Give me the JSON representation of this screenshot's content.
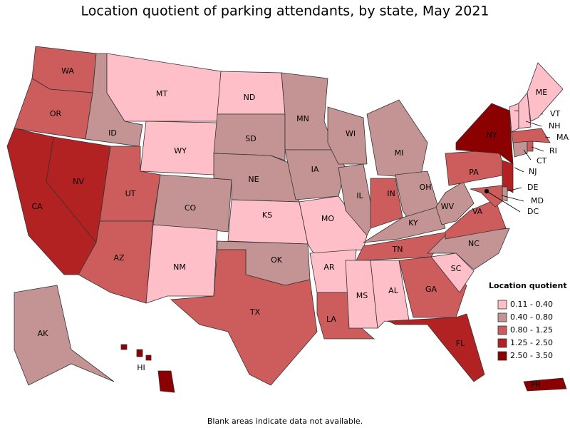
{
  "title": "Location quotient of parking attendants, by state, May 2021",
  "footnote": "Blank areas indicate data not available.",
  "legend": {
    "title": "Location quotient",
    "items": [
      {
        "label": "0.11 - 0.40",
        "color": "#ffbfc9"
      },
      {
        "label": "0.40 - 0.80",
        "color": "#c49494"
      },
      {
        "label": "0.80 - 1.25",
        "color": "#cd5c5c"
      },
      {
        "label": "1.25 - 2.50",
        "color": "#b22222"
      },
      {
        "label": "2.50 - 3.50",
        "color": "#8b0000"
      }
    ]
  },
  "states": [
    {
      "label": "WA",
      "range": "0.80 - 1.25"
    },
    {
      "label": "OR",
      "range": "0.80 - 1.25"
    },
    {
      "label": "CA",
      "range": "1.25 - 2.50"
    },
    {
      "label": "NV",
      "range": "1.25 - 2.50"
    },
    {
      "label": "ID",
      "range": "0.40 - 0.80"
    },
    {
      "label": "MT",
      "range": "0.11 - 0.40"
    },
    {
      "label": "WY",
      "range": "0.11 - 0.40"
    },
    {
      "label": "UT",
      "range": "0.80 - 1.25"
    },
    {
      "label": "AZ",
      "range": "0.80 - 1.25"
    },
    {
      "label": "CO",
      "range": "0.40 - 0.80"
    },
    {
      "label": "NM",
      "range": "0.11 - 0.40"
    },
    {
      "label": "ND",
      "range": "0.11 - 0.40"
    },
    {
      "label": "SD",
      "range": "0.40 - 0.80"
    },
    {
      "label": "NE",
      "range": "0.40 - 0.80"
    },
    {
      "label": "KS",
      "range": "0.11 - 0.40"
    },
    {
      "label": "OK",
      "range": "0.40 - 0.80"
    },
    {
      "label": "TX",
      "range": "0.80 - 1.25"
    },
    {
      "label": "MN",
      "range": "0.40 - 0.80"
    },
    {
      "label": "IA",
      "range": "0.40 - 0.80"
    },
    {
      "label": "MO",
      "range": "0.11 - 0.40"
    },
    {
      "label": "AR",
      "range": "0.11 - 0.40"
    },
    {
      "label": "LA",
      "range": "0.80 - 1.25"
    },
    {
      "label": "WI",
      "range": "0.40 - 0.80"
    },
    {
      "label": "IL",
      "range": "0.40 - 0.80"
    },
    {
      "label": "MI",
      "range": "0.40 - 0.80"
    },
    {
      "label": "IN",
      "range": "0.80 - 1.25"
    },
    {
      "label": "OH",
      "range": "0.40 - 0.80"
    },
    {
      "label": "KY",
      "range": "0.40 - 0.80"
    },
    {
      "label": "TN",
      "range": "0.80 - 1.25"
    },
    {
      "label": "MS",
      "range": "0.11 - 0.40"
    },
    {
      "label": "AL",
      "range": "0.11 - 0.40"
    },
    {
      "label": "GA",
      "range": "0.80 - 1.25"
    },
    {
      "label": "FL",
      "range": "1.25 - 2.50"
    },
    {
      "label": "SC",
      "range": "0.11 - 0.40"
    },
    {
      "label": "NC",
      "range": "0.40 - 0.80"
    },
    {
      "label": "VA",
      "range": "0.80 - 1.25"
    },
    {
      "label": "WV",
      "range": "0.40 - 0.80"
    },
    {
      "label": "PA",
      "range": "0.80 - 1.25"
    },
    {
      "label": "NY",
      "range": "2.50 - 3.50"
    },
    {
      "label": "NJ",
      "range": "1.25 - 2.50"
    },
    {
      "label": "DE",
      "range": "0.40 - 0.80"
    },
    {
      "label": "MD",
      "range": "0.80 - 1.25"
    },
    {
      "label": "DC",
      "range": "2.50 - 3.50"
    },
    {
      "label": "CT",
      "range": "0.40 - 0.80"
    },
    {
      "label": "RI",
      "range": "0.80 - 1.25"
    },
    {
      "label": "MA",
      "range": "0.80 - 1.25"
    },
    {
      "label": "VT",
      "range": "0.11 - 0.40"
    },
    {
      "label": "NH",
      "range": "0.11 - 0.40"
    },
    {
      "label": "ME",
      "range": "0.11 - 0.40"
    },
    {
      "label": "AK",
      "range": "0.40 - 0.80"
    },
    {
      "label": "HI",
      "range": "2.50 - 3.50"
    },
    {
      "label": "PR",
      "range": "2.50 - 3.50"
    }
  ]
}
